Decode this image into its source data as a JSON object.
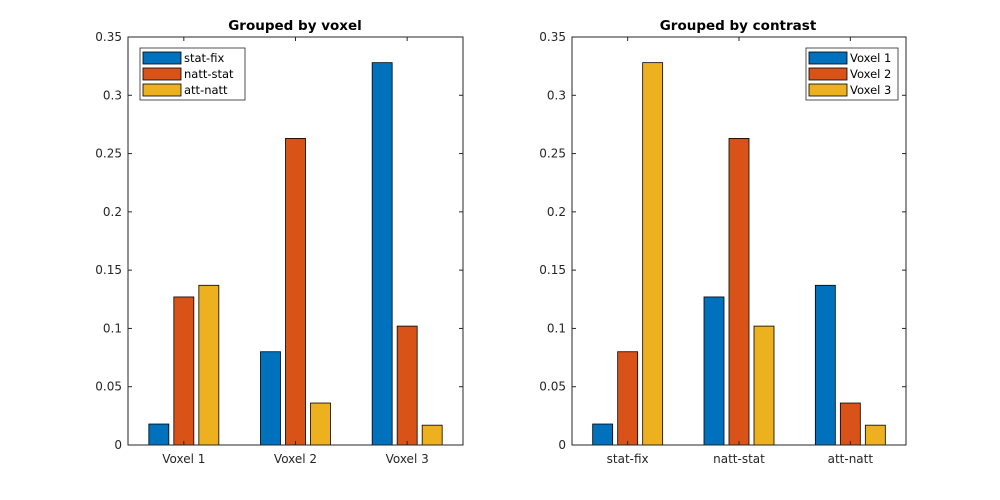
{
  "colors": {
    "blue": "#0072BD",
    "orange": "#D95319",
    "yellow": "#EDB120",
    "axis": "#262626",
    "background": "#FFFFFF"
  },
  "chart_data": [
    {
      "type": "bar",
      "title": "Grouped by voxel",
      "xlabel": "",
      "ylabel": "",
      "categories": [
        "Voxel 1",
        "Voxel 2",
        "Voxel 3"
      ],
      "series": [
        {
          "name": "stat-fix",
          "color": "#0072BD",
          "values": [
            0.018,
            0.08,
            0.328
          ]
        },
        {
          "name": "natt-stat",
          "color": "#D95319",
          "values": [
            0.127,
            0.263,
            0.102
          ]
        },
        {
          "name": "att-natt",
          "color": "#EDB120",
          "values": [
            0.137,
            0.036,
            0.017
          ]
        }
      ],
      "ylim": [
        0,
        0.35
      ],
      "yticks": [
        0,
        0.05,
        0.1,
        0.15,
        0.2,
        0.25,
        0.3,
        0.35
      ],
      "ytick_labels": [
        "0",
        "0.05",
        "0.1",
        "0.15",
        "0.2",
        "0.25",
        "0.3",
        "0.35"
      ],
      "legend_position": "top-left",
      "grid": false
    },
    {
      "type": "bar",
      "title": "Grouped by contrast",
      "xlabel": "",
      "ylabel": "",
      "categories": [
        "stat-fix",
        "natt-stat",
        "att-natt"
      ],
      "series": [
        {
          "name": "Voxel 1",
          "color": "#0072BD",
          "values": [
            0.018,
            0.127,
            0.137
          ]
        },
        {
          "name": "Voxel 2",
          "color": "#D95319",
          "values": [
            0.08,
            0.263,
            0.036
          ]
        },
        {
          "name": "Voxel 3",
          "color": "#EDB120",
          "values": [
            0.328,
            0.102,
            0.017
          ]
        }
      ],
      "ylim": [
        0,
        0.35
      ],
      "yticks": [
        0,
        0.05,
        0.1,
        0.15,
        0.2,
        0.25,
        0.3,
        0.35
      ],
      "ytick_labels": [
        "0",
        "0.05",
        "0.1",
        "0.15",
        "0.2",
        "0.25",
        "0.3",
        "0.35"
      ],
      "legend_position": "top-right",
      "grid": false
    }
  ]
}
